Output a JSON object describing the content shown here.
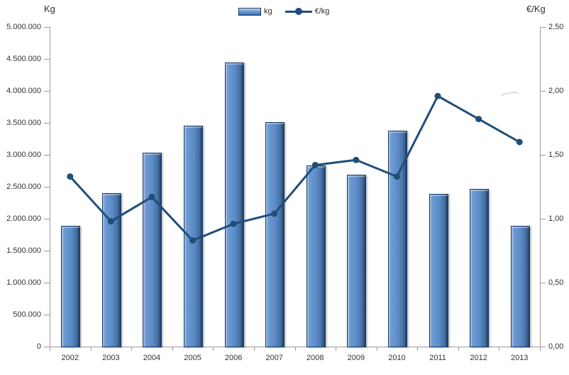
{
  "chart_data": {
    "type": "combo",
    "title": "",
    "categories": [
      "2002",
      "2003",
      "2004",
      "2005",
      "2006",
      "2007",
      "2008",
      "2009",
      "2010",
      "2011",
      "2012",
      "2013"
    ],
    "series": [
      {
        "name": "kg",
        "type": "bar",
        "axis": "left",
        "values": [
          1890000,
          2400000,
          3030000,
          3460000,
          4450000,
          3510000,
          2830000,
          2690000,
          3380000,
          2390000,
          2470000,
          1890000
        ]
      },
      {
        "name": "€/kg",
        "type": "line",
        "axis": "right",
        "values": [
          1.33,
          0.98,
          1.17,
          0.83,
          0.96,
          1.04,
          1.42,
          1.46,
          1.33,
          1.96,
          1.78,
          1.6
        ]
      }
    ],
    "left_axis": {
      "title": "Kg",
      "min": 0,
      "max": 5000000,
      "step": 500000,
      "tick_labels": [
        "0",
        "500.000",
        "1.000.000",
        "1.500.000",
        "2.000.000",
        "2.500.000",
        "3.000.000",
        "3.500.000",
        "4.000.000",
        "4.500.000",
        "5.000.000"
      ]
    },
    "right_axis": {
      "title": "€/Kg",
      "min": 0,
      "max": 2.5,
      "step": 0.5,
      "tick_labels": [
        "0,00",
        "0,50",
        "1,00",
        "1,50",
        "2,00",
        "2,50"
      ]
    },
    "legend": {
      "position": "top-center",
      "items": [
        "kg",
        "€/kg"
      ]
    },
    "grid": "off",
    "colors": {
      "bar_fill": "#5b8bc9",
      "bar_border": "#17375e",
      "line": "#1f4e79",
      "axis": "#9b9b9b",
      "text": "#333333"
    }
  }
}
